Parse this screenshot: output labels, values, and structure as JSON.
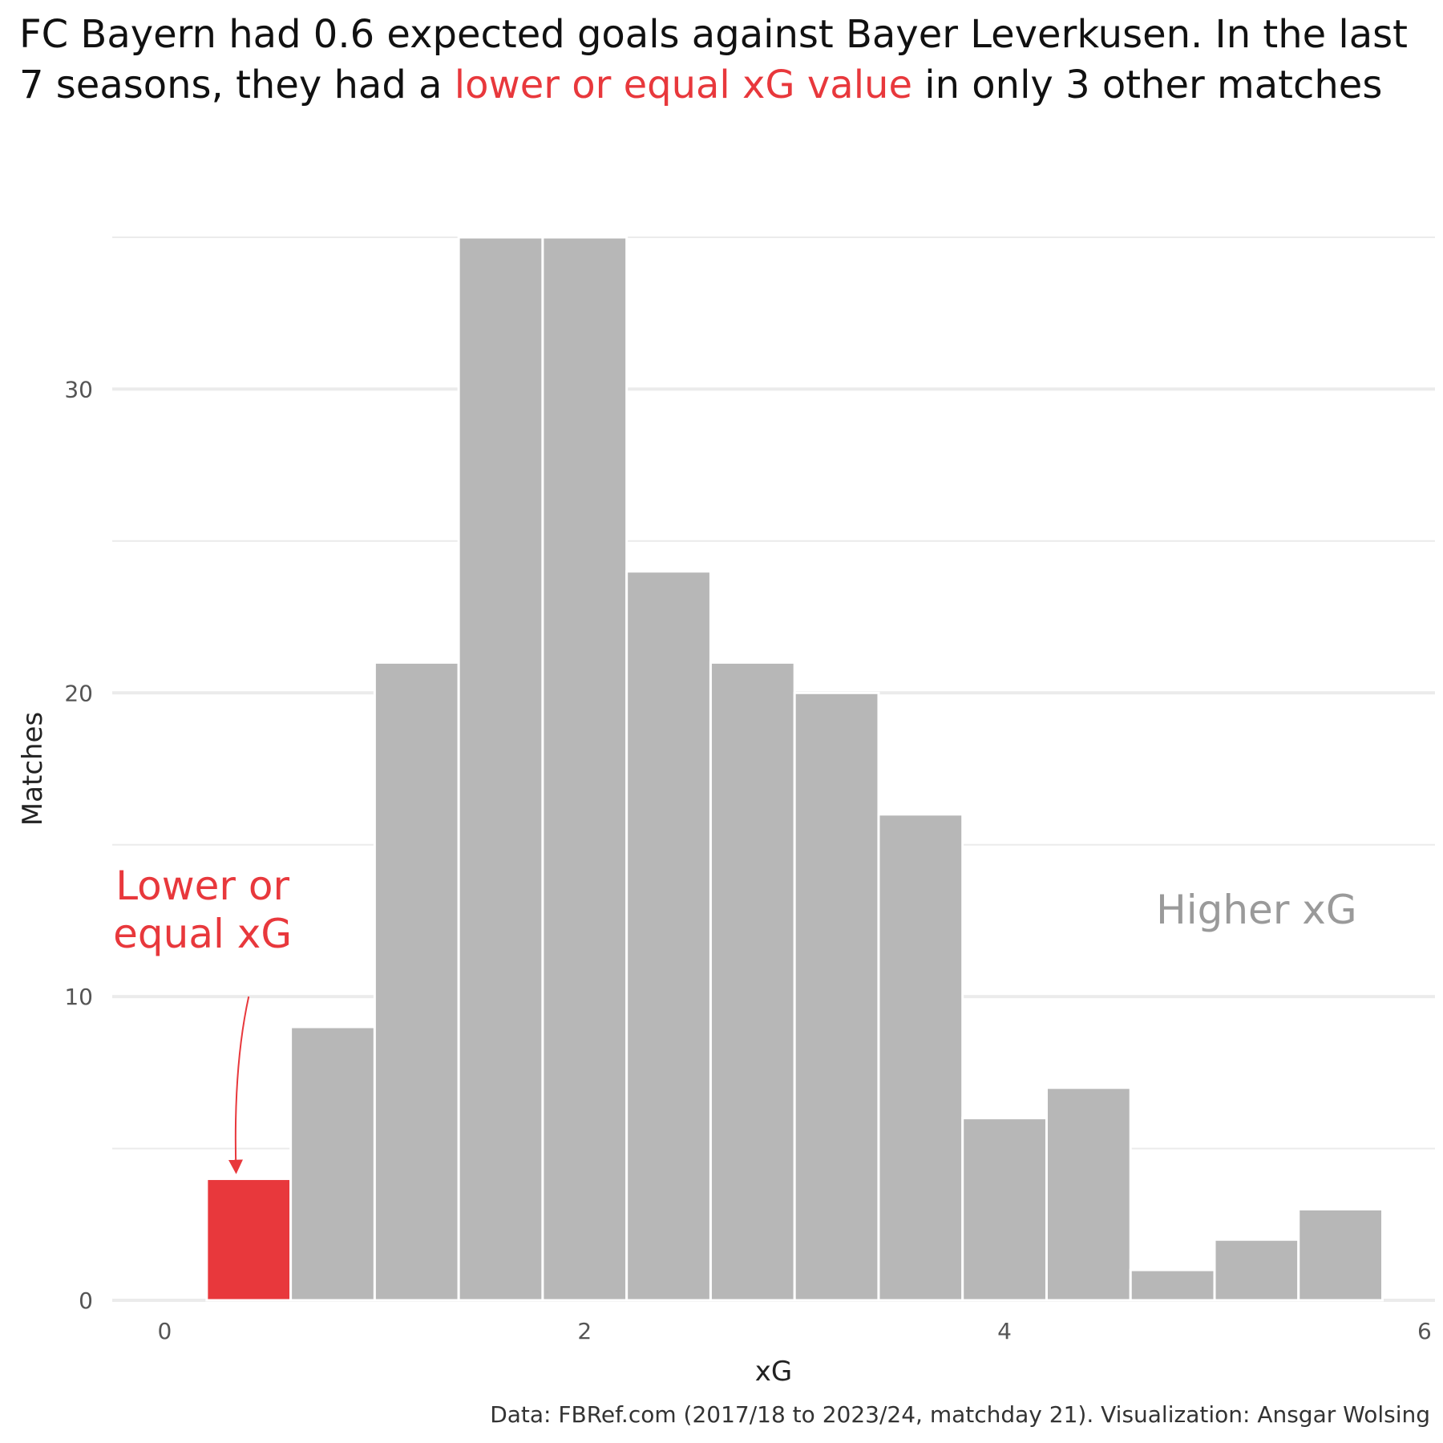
{
  "title": {
    "part1": "FC Bayern had 0.6 expected goals against Bayer Leverkusen. In the last 7 seasons, they had a ",
    "highlight": "lower or equal xG value",
    "part2": " in only 3 other matches"
  },
  "caption": "Data: FBRef.com (2017/18 to 2023/24, matchday 21). Visualization: Ansgar Wolsing",
  "colors": {
    "highlight": "#e8383c",
    "bar": "#b7b7b7",
    "grid": "#ebebeb",
    "annotation_gray": "#9a9a9a"
  },
  "chart_data": {
    "type": "bar",
    "title": "",
    "xlabel": "xG",
    "ylabel": "Matches",
    "xlim": [
      -0.25,
      6.05
    ],
    "ylim": [
      0,
      35
    ],
    "xticks": [
      0,
      2,
      4,
      6
    ],
    "xtick_labels": [
      "0",
      "2",
      "4",
      "6"
    ],
    "yticks": [
      0,
      10,
      20,
      30
    ],
    "ytick_labels": [
      "0",
      "10",
      "20",
      "30"
    ],
    "grid": true,
    "bin_width": 0.4,
    "bins": [
      {
        "x0": -0.2,
        "x1": 0.2,
        "value": 0,
        "highlight": false
      },
      {
        "x0": 0.2,
        "x1": 0.6,
        "value": 4,
        "highlight": true
      },
      {
        "x0": 0.6,
        "x1": 1.0,
        "value": 9,
        "highlight": false
      },
      {
        "x0": 1.0,
        "x1": 1.4,
        "value": 21,
        "highlight": false
      },
      {
        "x0": 1.4,
        "x1": 1.8,
        "value": 35,
        "highlight": false
      },
      {
        "x0": 1.8,
        "x1": 2.2,
        "value": 35,
        "highlight": false
      },
      {
        "x0": 2.2,
        "x1": 2.6,
        "value": 24,
        "highlight": false
      },
      {
        "x0": 2.6,
        "x1": 3.0,
        "value": 21,
        "highlight": false
      },
      {
        "x0": 3.0,
        "x1": 3.4,
        "value": 20,
        "highlight": false
      },
      {
        "x0": 3.4,
        "x1": 3.8,
        "value": 16,
        "highlight": false
      },
      {
        "x0": 3.8,
        "x1": 4.2,
        "value": 6,
        "highlight": false
      },
      {
        "x0": 4.2,
        "x1": 4.6,
        "value": 7,
        "highlight": false
      },
      {
        "x0": 4.6,
        "x1": 5.0,
        "value": 1,
        "highlight": false
      },
      {
        "x0": 5.0,
        "x1": 5.4,
        "value": 2,
        "highlight": false
      },
      {
        "x0": 5.4,
        "x1": 5.8,
        "value": 3,
        "highlight": false
      }
    ],
    "annotations": [
      {
        "text_lines": [
          "Lower or",
          "equal xG"
        ],
        "color": "#e8383c",
        "x": 0.18,
        "y": 13.2,
        "arrow_from": [
          0.4,
          10.0
        ],
        "arrow_to": [
          0.34,
          4.2
        ]
      },
      {
        "text_lines": [
          "Higher xG"
        ],
        "color": "#9a9a9a",
        "x": 5.2,
        "y": 12.4
      }
    ]
  }
}
